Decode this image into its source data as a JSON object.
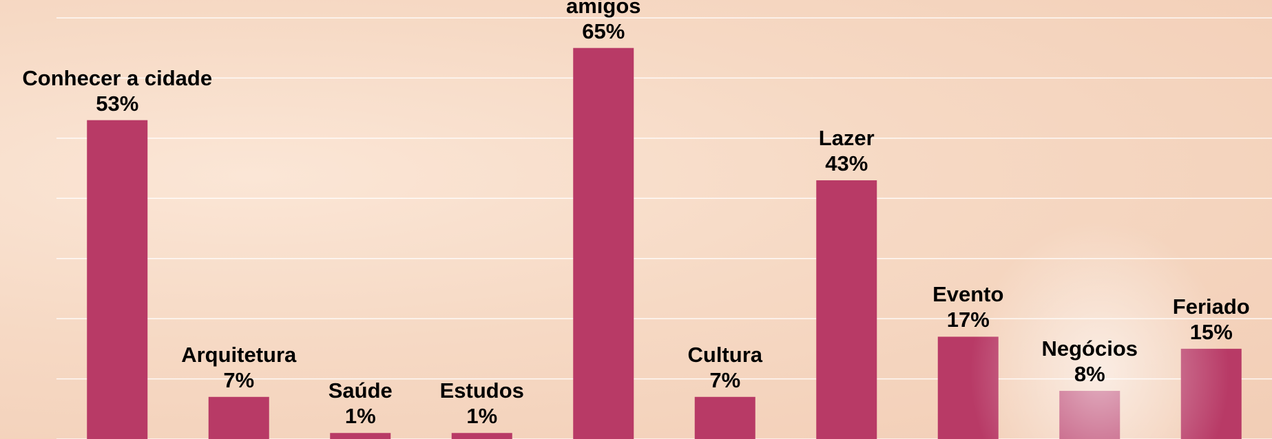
{
  "chart_data": {
    "type": "bar",
    "categories": [
      "Conhecer a cidade",
      "Arquitetura",
      "Saúde",
      "Estudos",
      "Visita parentes/ amigos",
      "Cultura",
      "Lazer",
      "Evento",
      "Negócios",
      "Feriado"
    ],
    "values": [
      53,
      7,
      1,
      1,
      65,
      7,
      43,
      17,
      8,
      15
    ],
    "value_labels": [
      "53%",
      "7%",
      "1%",
      "1%",
      "65%",
      "7%",
      "43%",
      "17%",
      "8%",
      "15%"
    ],
    "color": "#b83a66",
    "ylim": [
      0,
      70
    ],
    "yticks": [
      0,
      10,
      20,
      30,
      40,
      50,
      60,
      70
    ],
    "grid": true
  }
}
